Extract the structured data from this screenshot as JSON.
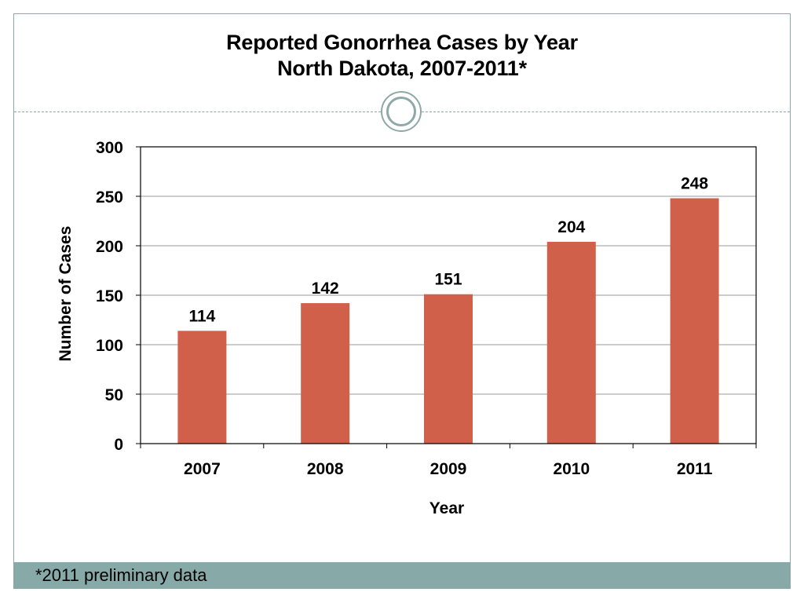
{
  "slide": {
    "title_line1": "Reported Gonorrhea Cases by Year",
    "title_line2": "North Dakota, 2007-2011*",
    "footnote": "*2011 preliminary data",
    "accent_color": "#87a9a8"
  },
  "chart_data": {
    "type": "bar",
    "categories": [
      "2007",
      "2008",
      "2009",
      "2010",
      "2011"
    ],
    "values": [
      114,
      142,
      151,
      204,
      248
    ],
    "xlabel": "Year",
    "ylabel": "Number of Cases",
    "ylim": [
      0,
      300
    ],
    "yticks": [
      0,
      50,
      100,
      150,
      200,
      250,
      300
    ],
    "grid": true,
    "legend": "none",
    "bar_color": "#d1604a",
    "data_labels": [
      "114",
      "142",
      "151",
      "204",
      "248"
    ]
  }
}
